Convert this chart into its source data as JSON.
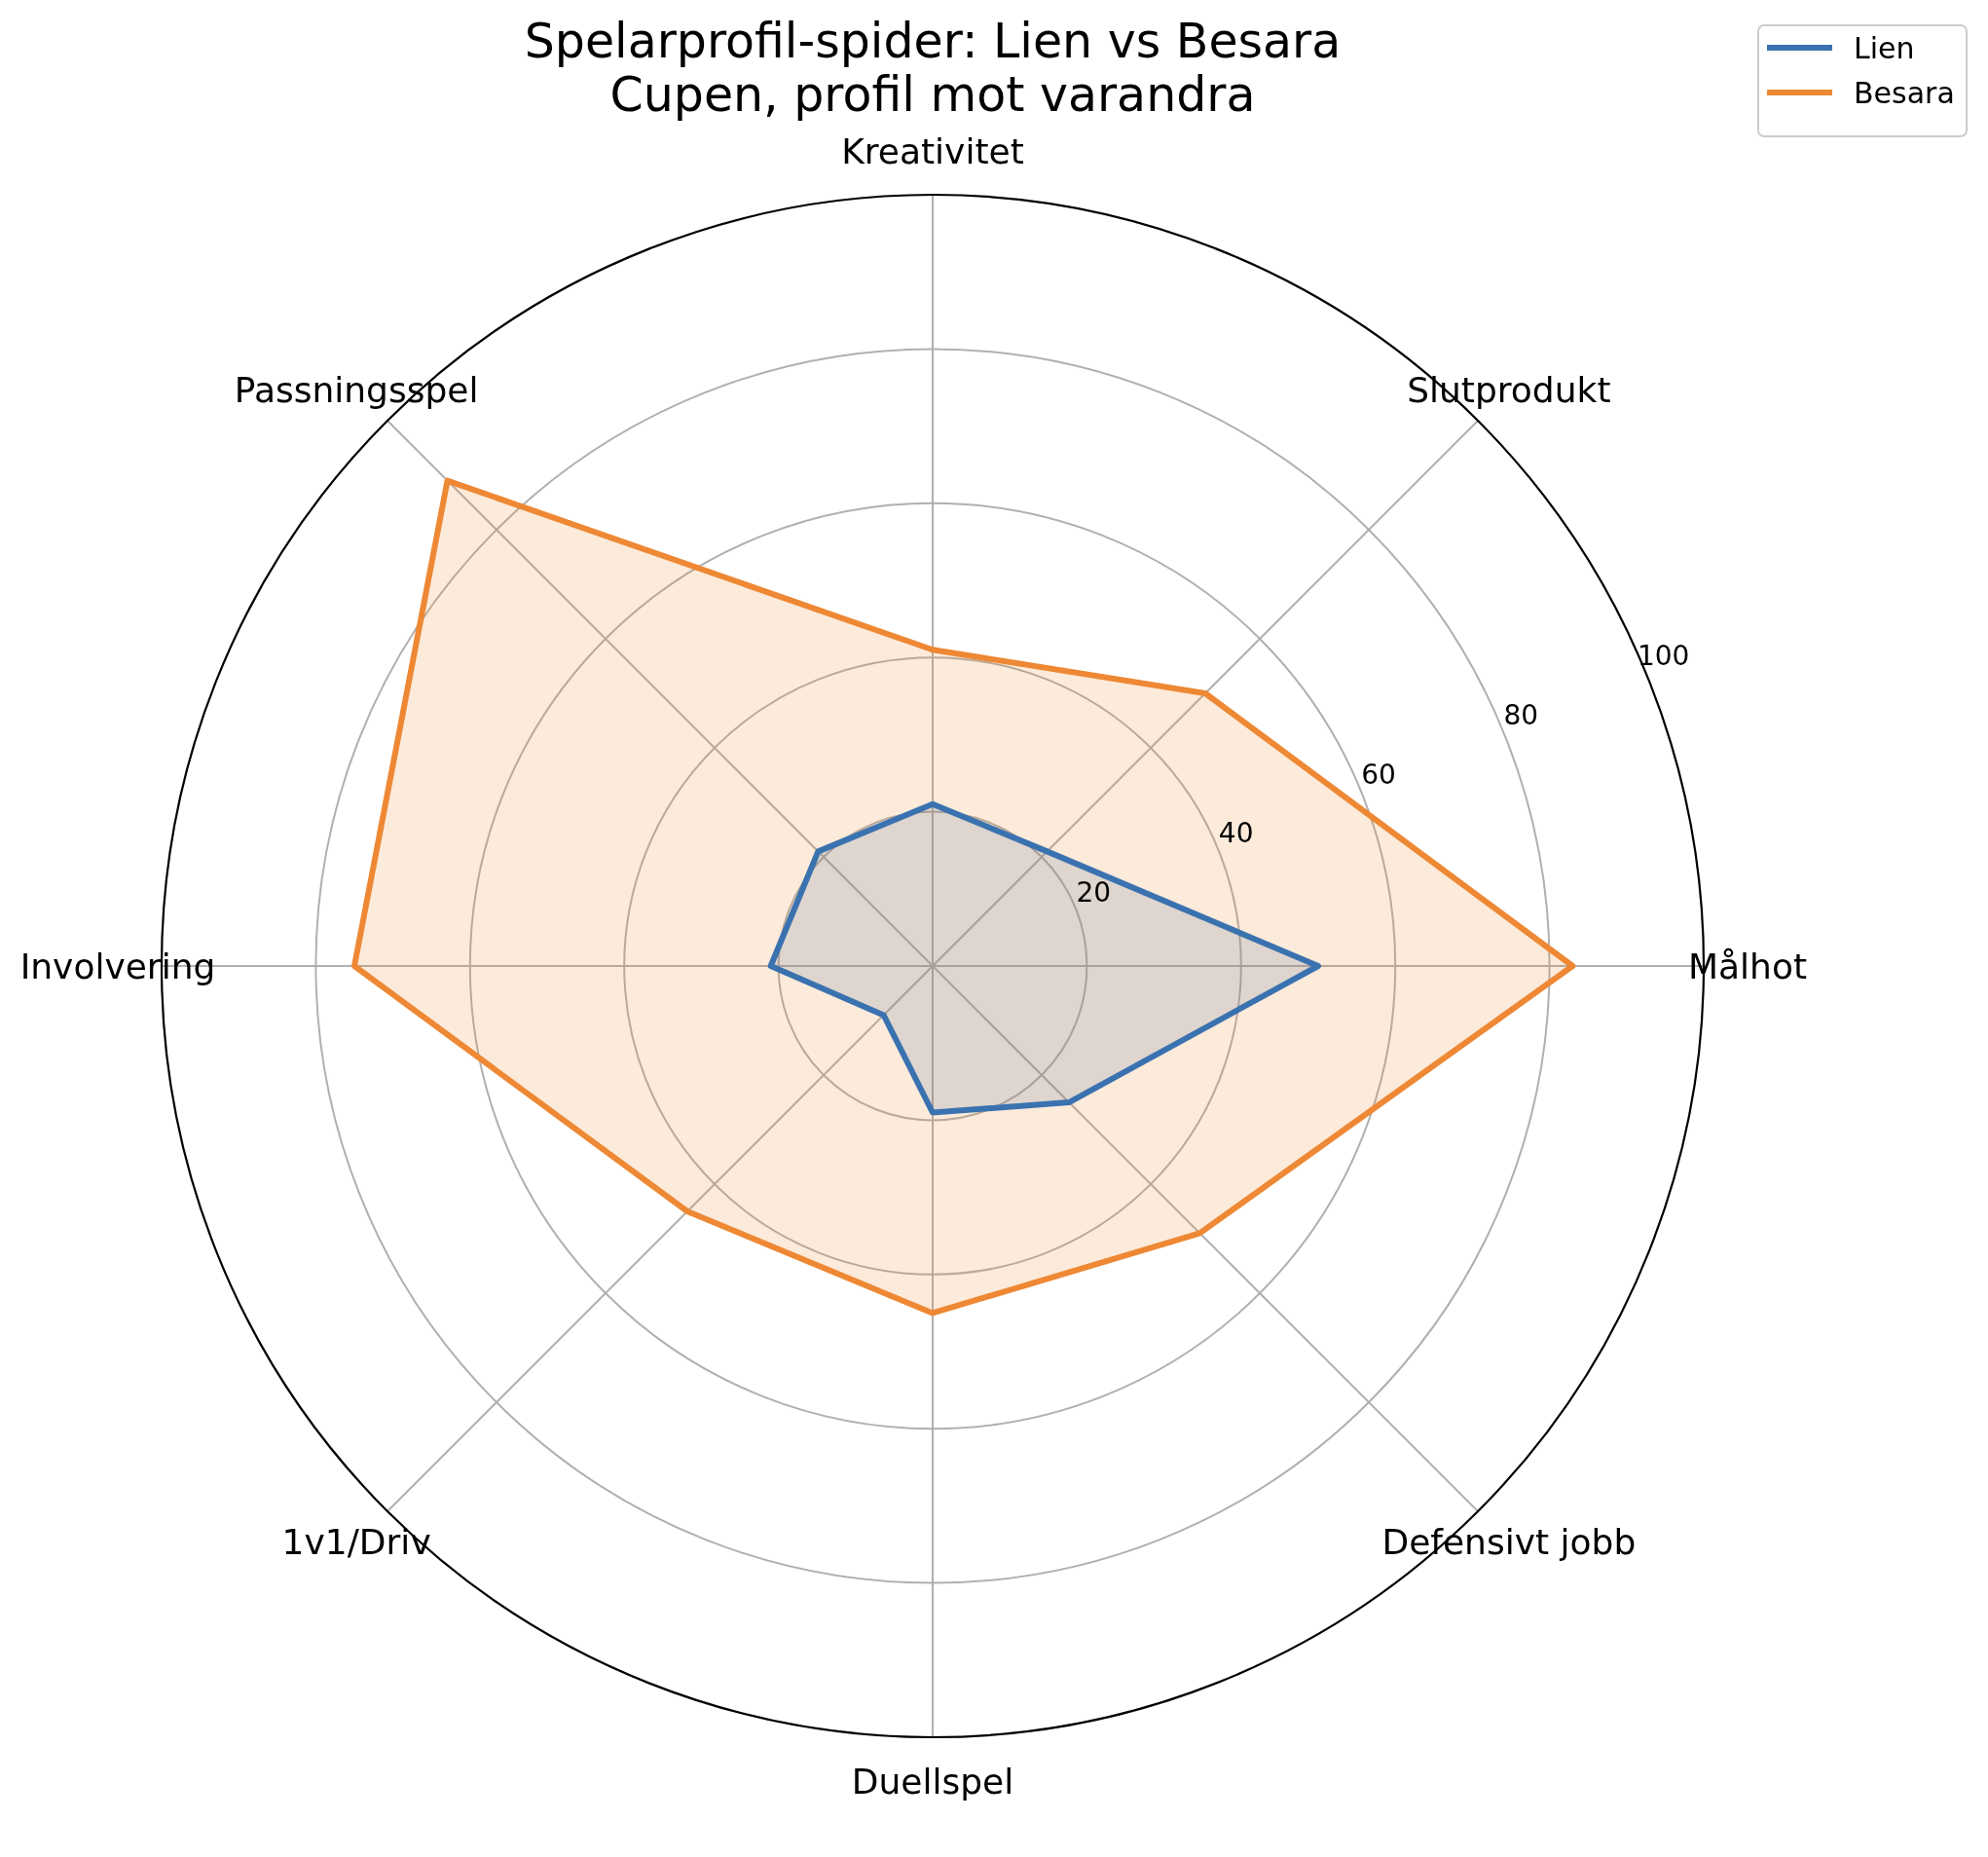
{
  "chart_data": {
    "type": "radar",
    "title": "Spelarprofil-spider: Lien vs Besara",
    "subtitle": "Cupen, profil mot varandra",
    "categories": [
      "Kreativitet",
      "Slutprodukt",
      "Målhot",
      "Defensivt jobb",
      "Duellspel",
      "1v1/Driv",
      "Involvering",
      "Passningsspel"
    ],
    "series": [
      {
        "name": "Lien",
        "color": "#3a72b0",
        "values": [
          21,
          21,
          50,
          25,
          19,
          9,
          21,
          21
        ]
      },
      {
        "name": "Besara",
        "color": "#ee8834",
        "values": [
          41,
          50,
          83,
          49,
          45,
          45,
          75,
          89
        ]
      }
    ],
    "ylim": [
      0,
      100
    ],
    "yticks": [
      20,
      40,
      60,
      80,
      100
    ],
    "grid": true,
    "legend": "top right"
  }
}
